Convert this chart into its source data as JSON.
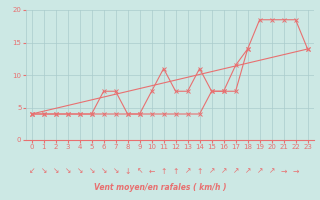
{
  "xlabel": "Vent moyen/en rafales ( km/h )",
  "xlim": [
    -0.5,
    23.5
  ],
  "ylim": [
    0,
    20
  ],
  "xticks": [
    0,
    1,
    2,
    3,
    4,
    5,
    6,
    7,
    8,
    9,
    10,
    11,
    12,
    13,
    14,
    15,
    16,
    17,
    18,
    19,
    20,
    21,
    22,
    23
  ],
  "yticks": [
    0,
    5,
    10,
    15,
    20
  ],
  "bg_color": "#cce8e4",
  "grid_color": "#aacccc",
  "line_color": "#e87070",
  "line1_x": [
    0,
    1,
    2,
    3,
    4,
    5,
    6,
    7,
    8,
    9,
    10,
    11,
    12,
    13,
    14,
    15,
    16,
    17,
    18,
    19,
    20,
    21,
    22,
    23
  ],
  "line1_y": [
    4,
    4,
    4,
    4,
    4,
    4,
    4,
    4,
    4,
    4,
    4,
    4,
    4,
    4,
    4,
    7.5,
    7.5,
    7.5,
    14,
    18.5,
    18.5,
    18.5,
    18.5,
    14
  ],
  "line2_x": [
    0,
    1,
    2,
    3,
    4,
    5,
    6,
    7,
    8,
    9,
    10,
    11,
    12,
    13,
    14,
    15,
    16,
    17,
    18
  ],
  "line2_y": [
    4,
    4,
    4,
    4,
    4,
    4,
    7.5,
    7.5,
    4,
    4,
    7.5,
    11,
    7.5,
    7.5,
    11,
    7.5,
    7.5,
    11.5,
    14
  ],
  "line3_x": [
    0,
    23
  ],
  "line3_y": [
    4,
    14
  ],
  "arrows": [
    "↙",
    "↘",
    "↘",
    "↘",
    "↘",
    "↘",
    "↘",
    "↘",
    "↓",
    "↖",
    "←",
    "↑",
    "↑",
    "↗",
    "↑",
    "↗",
    "↗",
    "↗",
    "↗",
    "↗",
    "↗",
    "→",
    "→"
  ],
  "marker": "x",
  "markersize": 3,
  "linewidth": 0.8
}
